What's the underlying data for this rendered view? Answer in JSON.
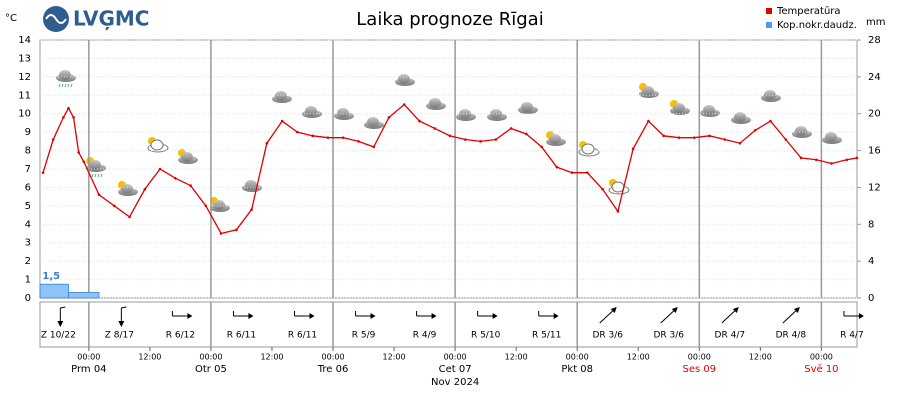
{
  "chart_data": {
    "type": "line",
    "logo": "LVĢMC",
    "title": "Laika prognoze Rīgai",
    "y_unit": "°C",
    "y2_unit": "mm",
    "xlim": [
      -9.6,
      151
    ],
    "xticks": [
      {
        "value": 0,
        "label": "00:00"
      },
      {
        "value": 12,
        "label": "12:00"
      },
      {
        "value": 24,
        "label": "00:00"
      },
      {
        "value": 36,
        "label": "12:00"
      },
      {
        "value": 48,
        "label": "00:00"
      },
      {
        "value": 60,
        "label": "12:00"
      },
      {
        "value": 72,
        "label": "00:00"
      },
      {
        "value": 84,
        "label": "12:00"
      },
      {
        "value": 96,
        "label": "00:00"
      },
      {
        "value": 108,
        "label": "12:00"
      },
      {
        "value": 120,
        "label": "00:00"
      },
      {
        "value": 132,
        "label": "12:00"
      },
      {
        "value": 144,
        "label": "00:00"
      }
    ],
    "ylim": [
      0,
      14
    ],
    "yticks": [
      0,
      1,
      2,
      3,
      4,
      5,
      6,
      7,
      8,
      9,
      10,
      11,
      12,
      13,
      14
    ],
    "y2lim": [
      0,
      28
    ],
    "y2ticks": [
      0,
      4,
      8,
      12,
      16,
      20,
      24,
      28
    ],
    "grid": true,
    "series": [
      {
        "name": "Temperatūra",
        "color": "#e00000",
        "x": [
          -9,
          -7,
          -5,
          -4,
          -3,
          -2,
          -1,
          2,
          5,
          8,
          11,
          14,
          17,
          20,
          23,
          26,
          29,
          32,
          35,
          38,
          41,
          44,
          47,
          50,
          53,
          56,
          59,
          62,
          65,
          68,
          71,
          74,
          77,
          80,
          83,
          86,
          89,
          92,
          95,
          98,
          101,
          104,
          107,
          110,
          113,
          116,
          119,
          122,
          125,
          128,
          131,
          134,
          137,
          140,
          143,
          146,
          149,
          151
        ],
        "values": [
          6.8,
          8.6,
          9.8,
          10.3,
          9.8,
          7.9,
          7.4,
          5.6,
          5.0,
          4.4,
          5.9,
          7.0,
          6.5,
          6.1,
          5.0,
          3.5,
          3.7,
          4.8,
          8.4,
          9.6,
          9.0,
          8.8,
          8.7,
          8.7,
          8.5,
          8.2,
          9.8,
          10.5,
          9.6,
          9.2,
          8.8,
          8.6,
          8.5,
          8.6,
          9.2,
          8.9,
          8.2,
          7.1,
          6.8,
          6.8,
          5.9,
          4.7,
          8.1,
          9.6,
          8.8,
          8.7,
          8.7,
          8.8,
          8.6,
          8.4,
          9.1,
          9.6,
          8.6,
          7.6,
          7.5,
          7.3,
          7.5,
          7.6
        ]
      },
      {
        "name": "Kop.nokr.daudz.",
        "color": "#8cc4f5",
        "type": "bar",
        "axis": "y2",
        "bins": [
          -9.6,
          -4,
          2
        ],
        "values": [
          1.5,
          0.6
        ],
        "value_labels": [
          "1,5",
          null
        ]
      }
    ],
    "days": [
      {
        "x": 0,
        "label": "Prm 04",
        "color": "#000000"
      },
      {
        "x": 24,
        "label": "Otr 05",
        "color": "#000000"
      },
      {
        "x": 48,
        "label": "Tre 06",
        "color": "#000000"
      },
      {
        "x": 72,
        "label": "Cet 07",
        "color": "#000000"
      },
      {
        "x": 96,
        "label": "Pkt 08",
        "color": "#000000"
      },
      {
        "x": 120,
        "label": "Ses 09",
        "color": "#e00000"
      },
      {
        "x": 144,
        "label": "Svē 10",
        "color": "#e00000"
      }
    ],
    "month": {
      "x": 72,
      "label": "Nov 2024"
    },
    "wind": {
      "x": [
        -6,
        6,
        18,
        30,
        42,
        54,
        66,
        78,
        90,
        102,
        114,
        126,
        138,
        150
      ],
      "labels": [
        "Z 10/22",
        "Z 8/17",
        "R 6/12",
        "R 6/11",
        "R 6/11",
        "R 5/9",
        "R 4/9",
        "R 5/10",
        "R 5/11",
        "DR 3/6",
        "DR 3/6",
        "DR 4/7",
        "DR 4/8",
        "R 4/7"
      ]
    }
  }
}
